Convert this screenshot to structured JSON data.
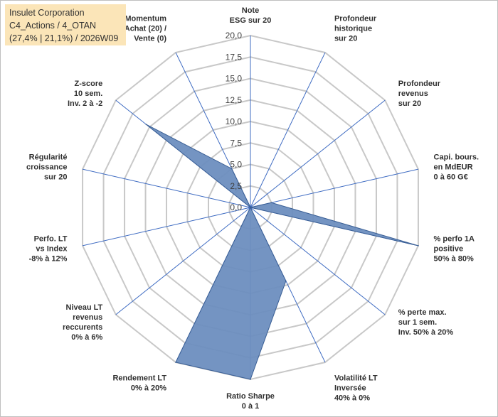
{
  "header": {
    "company": "Insulet Corporation",
    "category": "C4_Actions / 4_OTAN",
    "stats": "(27,4% | 21,1%) / 2026W09"
  },
  "chart_data": {
    "type": "radar",
    "title": "Insulet Corporation",
    "rlim": [
      0,
      20
    ],
    "rticks": [
      "0,0",
      "2,5",
      "5,0",
      "7,5",
      "10,0",
      "12,5",
      "15,0",
      "17,5",
      "20,0"
    ],
    "grid": true,
    "colors": {
      "fill": "#6d8ebf",
      "stroke": "#3a5f95",
      "grid": "#c8c8c8",
      "axis": "#3e6bc2"
    },
    "axes": [
      {
        "label": [
          "Note",
          "ESG sur 20"
        ],
        "value": 0
      },
      {
        "label": [
          "Profondeur",
          "historique",
          "sur 20"
        ],
        "value": 0
      },
      {
        "label": [
          "Profondeur",
          "revenus",
          "sur 20"
        ],
        "value": 0
      },
      {
        "label": [
          "Capi. bours.",
          "en MdEUR",
          "0 à 60 G€"
        ],
        "value": 2.5
      },
      {
        "label": [
          "% perfo 1A",
          "positive",
          "50% à 80%"
        ],
        "value": 20
      },
      {
        "label": [
          "% perte max.",
          "sur 1 sem.",
          "Inv. 50% à 20%"
        ],
        "value": 0
      },
      {
        "label": [
          "Volatilité LT",
          "Inversée",
          "40% à 0%"
        ],
        "value": 9.5
      },
      {
        "label": [
          "Ratio Sharpe",
          "0 à 1"
        ],
        "value": 20
      },
      {
        "label": [
          "Rendement LT",
          "0% à 20%"
        ],
        "value": 20
      },
      {
        "label": [
          "Niveau LT",
          "revenus",
          "reccurents",
          "0% à 6%"
        ],
        "value": 0
      },
      {
        "label": [
          "Perfo. LT",
          "vs Index",
          "-8% à 12%"
        ],
        "value": 0
      },
      {
        "label": [
          "Régularité",
          "croissance",
          "sur 20"
        ],
        "value": 0
      },
      {
        "label": [
          "Z-score",
          "10 sem.",
          "Inv. 2 à -2"
        ],
        "value": 15.5
      },
      {
        "label": [
          "Momentum",
          "Achat (20) /",
          "Vente (0)"
        ],
        "value": 5
      }
    ]
  }
}
